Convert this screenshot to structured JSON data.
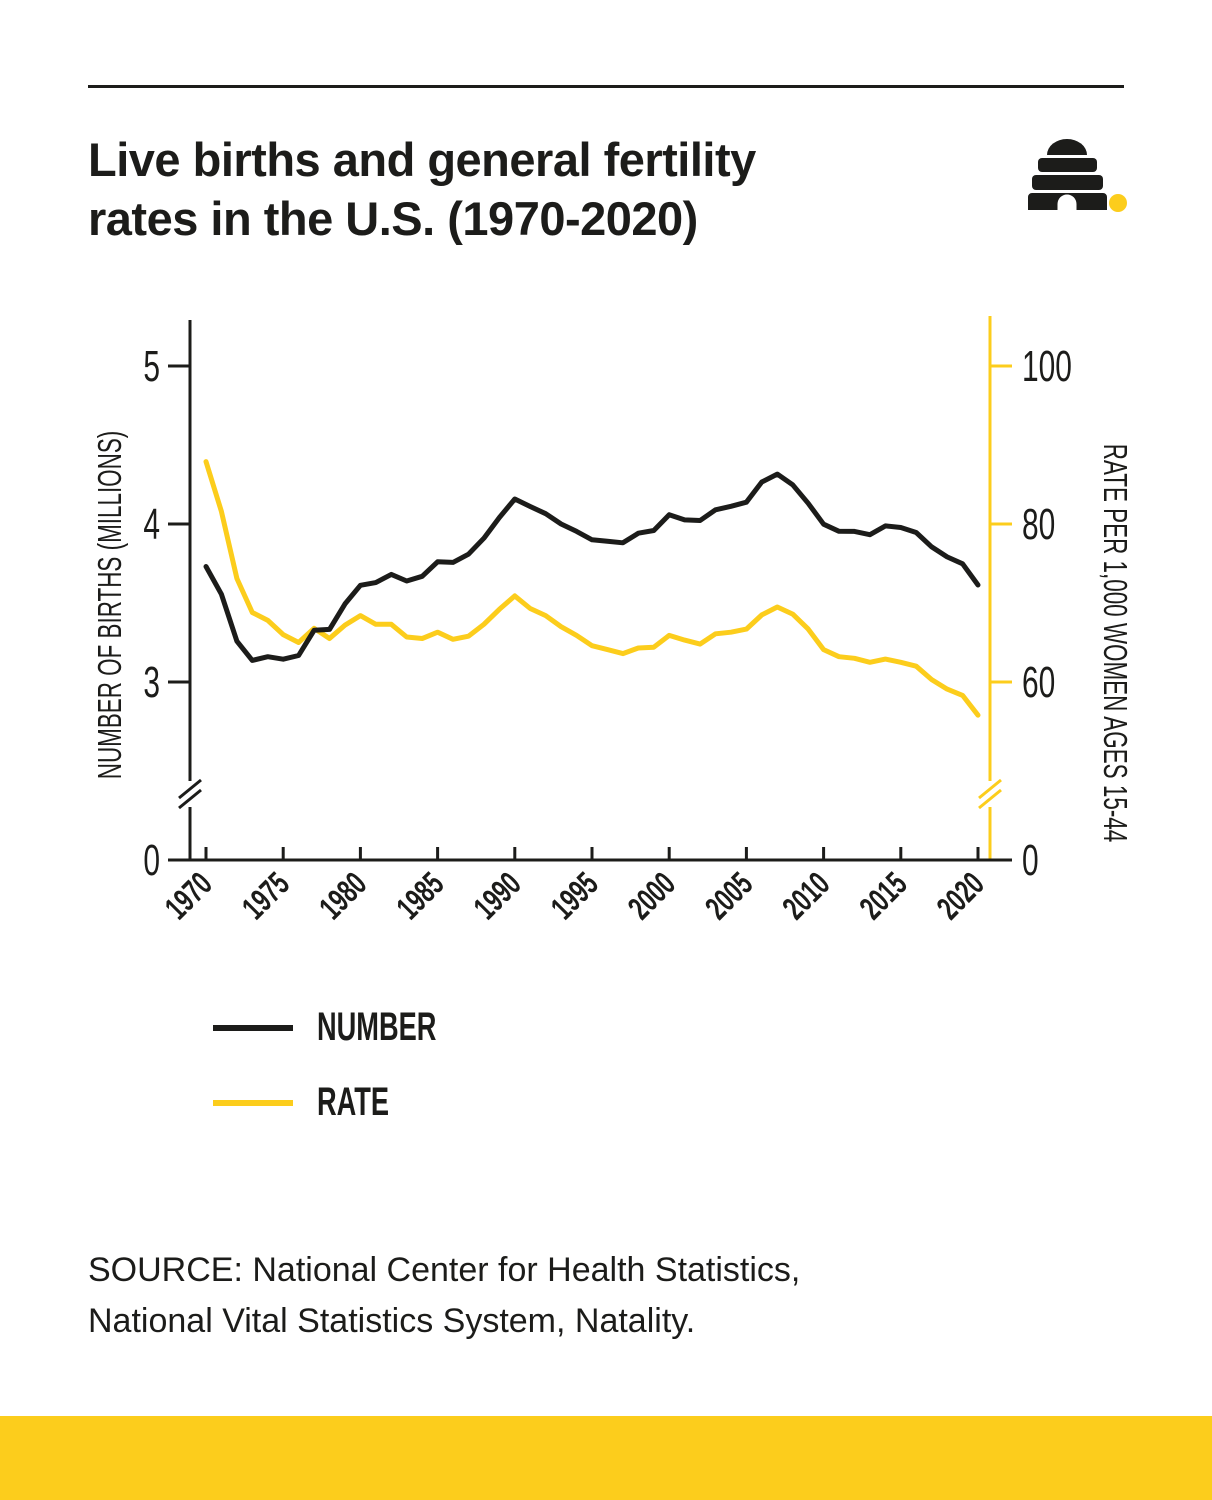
{
  "page": {
    "background": "#ffffff",
    "ink": "#1c1c1a",
    "accent_yellow": "#FCCD1C"
  },
  "header": {
    "title_line1": "Live births and general fertility",
    "title_line2": "rates in the U.S. (1970-2020)",
    "logo": "beehive-logo"
  },
  "chart_data": {
    "type": "line",
    "title": "Live births and general fertility rates in the U.S. (1970-2020)",
    "x": [
      1970,
      1971,
      1972,
      1973,
      1974,
      1975,
      1976,
      1977,
      1978,
      1979,
      1980,
      1981,
      1982,
      1983,
      1984,
      1985,
      1986,
      1987,
      1988,
      1989,
      1990,
      1991,
      1992,
      1993,
      1994,
      1995,
      1996,
      1997,
      1998,
      1999,
      2000,
      2001,
      2002,
      2003,
      2004,
      2005,
      2006,
      2007,
      2008,
      2009,
      2010,
      2011,
      2012,
      2013,
      2014,
      2015,
      2016,
      2017,
      2018,
      2019,
      2020
    ],
    "x_ticks": [
      1970,
      1975,
      1980,
      1985,
      1990,
      1995,
      2000,
      2005,
      2010,
      2015,
      2020
    ],
    "left_axis": {
      "label": "NUMBER OF BIRTHS (MILLIONS)",
      "ticks": [
        5,
        4,
        3,
        0
      ],
      "range": [
        0,
        5.3
      ],
      "axis_break": true,
      "color": "#1c1c1a"
    },
    "right_axis": {
      "label": "RATE PER 1,000 WOMEN AGES 15-44",
      "ticks": [
        100,
        80,
        60,
        0
      ],
      "range": [
        0,
        106
      ],
      "axis_break": true,
      "color": "#FCCD1C"
    },
    "grid": false,
    "legend_position": "bottom-left",
    "series": [
      {
        "name": "NUMBER",
        "axis": "left",
        "color": "#1c1c1a",
        "values": [
          3.731,
          3.556,
          3.258,
          3.137,
          3.16,
          3.144,
          3.168,
          3.327,
          3.333,
          3.494,
          3.612,
          3.629,
          3.681,
          3.639,
          3.669,
          3.761,
          3.757,
          3.809,
          3.91,
          4.041,
          4.158,
          4.111,
          4.065,
          4.0,
          3.953,
          3.9,
          3.891,
          3.881,
          3.942,
          3.959,
          4.059,
          4.026,
          4.022,
          4.09,
          4.112,
          4.138,
          4.266,
          4.316,
          4.248,
          4.131,
          3.999,
          3.954,
          3.953,
          3.932,
          3.988,
          3.978,
          3.946,
          3.855,
          3.792,
          3.748,
          3.614
        ]
      },
      {
        "name": "RATE",
        "axis": "right",
        "color": "#FCCD1C",
        "values": [
          87.9,
          81.6,
          73.1,
          68.8,
          67.8,
          66.0,
          65.0,
          66.8,
          65.5,
          67.2,
          68.4,
          67.3,
          67.3,
          65.7,
          65.5,
          66.3,
          65.4,
          65.8,
          67.3,
          69.2,
          70.9,
          69.3,
          68.4,
          67.0,
          65.9,
          64.6,
          64.1,
          63.6,
          64.3,
          64.4,
          65.9,
          65.3,
          64.8,
          66.1,
          66.3,
          66.7,
          68.5,
          69.5,
          68.6,
          66.7,
          64.1,
          63.2,
          63.0,
          62.5,
          62.9,
          62.5,
          62.0,
          60.3,
          59.1,
          58.3,
          55.8
        ]
      }
    ]
  },
  "legend": {
    "items": [
      {
        "label": "NUMBER",
        "color": "#1c1c1a"
      },
      {
        "label": "RATE",
        "color": "#FCCD1C"
      }
    ]
  },
  "source": {
    "line1": "SOURCE: National Center for Health Statistics,",
    "line2": "National Vital Statistics System, Natality."
  }
}
